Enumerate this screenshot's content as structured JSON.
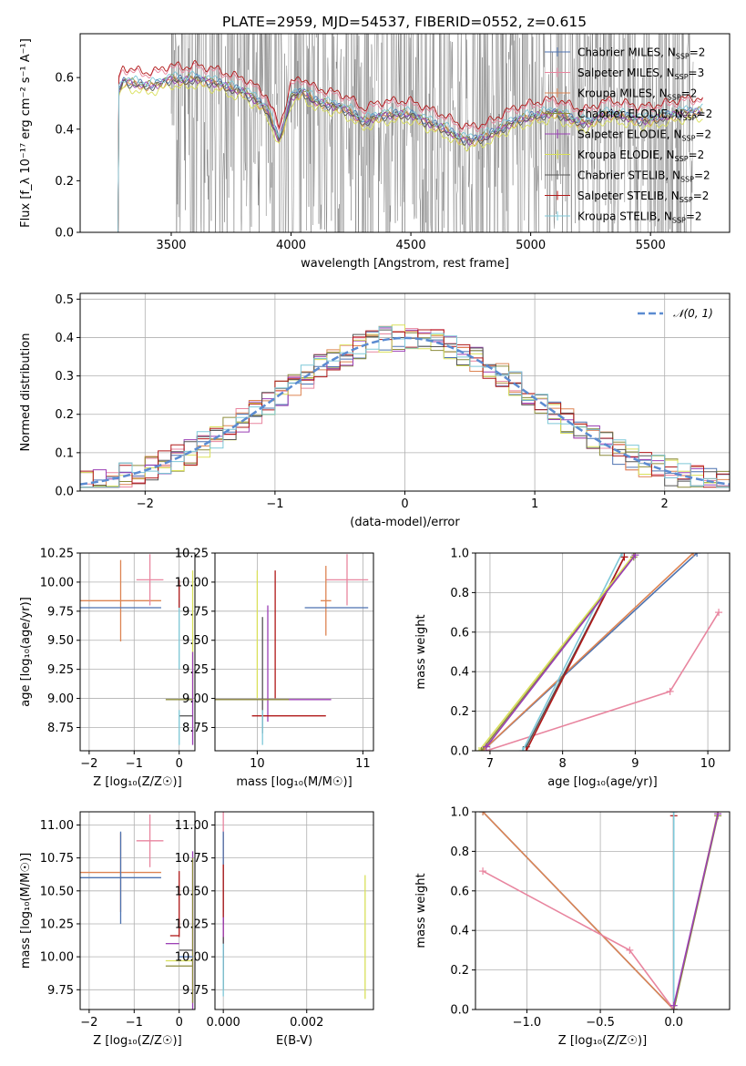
{
  "figure": {
    "title": "PLATE=2959, MJD=54537, FIBERID=0552, z=0.615"
  },
  "chart_data": [
    {
      "id": "spectrum",
      "type": "line",
      "xlabel": "wavelength [Angstrom, rest frame]",
      "ylabel": "Flux [f_λ 10⁻¹⁷ erg cm⁻² s⁻¹ A⁻¹]",
      "xlim": [
        3120,
        5830
      ],
      "ylim": [
        0,
        0.77
      ],
      "xticks": [
        3500,
        4000,
        4500,
        5000,
        5500
      ],
      "yticks": [
        0.0,
        0.2,
        0.4,
        0.6
      ],
      "legend_position": "top-right",
      "series": [
        {
          "name": "Chabrier MILES, N_SSP=2",
          "color": "#4c72b0",
          "marker": "|"
        },
        {
          "name": "Salpeter MILES, N_SSP=3",
          "color": "#e8859f",
          "marker": "|"
        },
        {
          "name": "Kroupa MILES, N_SSP=2",
          "color": "#dd8452",
          "marker": "|"
        },
        {
          "name": "Chabrier ELODIE, N_SSP=2",
          "color": "#8c8c3c",
          "marker": "|"
        },
        {
          "name": "Salpeter ELODIE, N_SSP=2",
          "color": "#9b3fb5",
          "marker": "|"
        },
        {
          "name": "Kroupa ELODIE, N_SSP=2",
          "color": "#d9e05a",
          "marker": "|"
        },
        {
          "name": "Chabrier STELIB, N_SSP=2",
          "color": "#555555",
          "marker": "|"
        },
        {
          "name": "Salpeter STELIB, N_SSP=2",
          "color": "#b01818",
          "marker": "|"
        },
        {
          "name": "Kroupa STELIB, N_SSP=2",
          "color": "#7ec8d8",
          "marker": "|"
        }
      ],
      "model_profile": {
        "x": [
          3280,
          3300,
          3350,
          3400,
          3450,
          3500,
          3550,
          3600,
          3650,
          3700,
          3750,
          3800,
          3850,
          3900,
          3950,
          3970,
          4000,
          4050,
          4100,
          4150,
          4200,
          4250,
          4300,
          4350,
          4400,
          4450,
          4500,
          4550,
          4600,
          4650,
          4700,
          4750,
          4800,
          4850,
          4900,
          4950,
          5000,
          5050,
          5100,
          5150,
          5200,
          5250,
          5300,
          5350,
          5400,
          5450,
          5500,
          5550,
          5600,
          5650,
          5700
        ],
        "y": [
          0.55,
          0.59,
          0.58,
          0.57,
          0.58,
          0.6,
          0.59,
          0.6,
          0.59,
          0.58,
          0.56,
          0.55,
          0.52,
          0.48,
          0.36,
          0.42,
          0.53,
          0.55,
          0.51,
          0.5,
          0.49,
          0.47,
          0.43,
          0.45,
          0.46,
          0.46,
          0.46,
          0.44,
          0.42,
          0.4,
          0.37,
          0.36,
          0.37,
          0.39,
          0.42,
          0.44,
          0.45,
          0.46,
          0.47,
          0.45,
          0.43,
          0.43,
          0.46,
          0.46,
          0.45,
          0.44,
          0.44,
          0.45,
          0.46,
          0.47,
          0.47
        ],
        "plateau_before": 3280
      },
      "data_noise": {
        "x_start": 3500,
        "x_end": 5680,
        "color": "#808080"
      }
    },
    {
      "id": "residuals",
      "type": "histogram",
      "xlabel": "(data-model)/error",
      "ylabel": "Normed distribution",
      "xlim": [
        -2.5,
        2.5
      ],
      "ylim": [
        0,
        0.515
      ],
      "xticks": [
        -2,
        -1,
        0,
        1,
        2
      ],
      "yticks": [
        0.0,
        0.1,
        0.2,
        0.3,
        0.4,
        0.5
      ],
      "grid": true,
      "legend": {
        "label": "𝒩(0, 1)",
        "position": "top-right",
        "color": "#5b8bd1"
      },
      "bin_width": 0.1,
      "histogram_colors": [
        "#4c72b0",
        "#e8859f",
        "#dd8452",
        "#8c8c3c",
        "#9b3fb5",
        "#d9e05a",
        "#555555",
        "#b01818",
        "#7ec8d8"
      ]
    },
    {
      "id": "age_vs_Z",
      "type": "scatter",
      "xlabel": "Z [log₁₀(Z/Z☉)]",
      "ylabel": "age  [log₁₀(age/yr)]",
      "xlim": [
        -2.2,
        0.35
      ],
      "ylim": [
        8.55,
        10.25
      ],
      "xticks": [
        -2,
        -1,
        0
      ],
      "yticks": [
        8.75,
        9.0,
        9.25,
        9.5,
        9.75,
        10.0,
        10.25
      ],
      "grid": true,
      "points": [
        {
          "x": -1.3,
          "y": 9.84,
          "xerr": 0.9,
          "yerr": 0.35,
          "color": "#dd8452"
        },
        {
          "x": -1.3,
          "y": 9.78,
          "xerr": 0.9,
          "yerr": 0.0,
          "color": "#4c72b0"
        },
        {
          "x": -0.65,
          "y": 10.02,
          "xerr": 0.3,
          "yerr": 0.22,
          "color": "#e8859f"
        },
        {
          "x": 0.0,
          "y": 9.55,
          "xerr": 0.0,
          "yerr": 0.3,
          "color": "#7ec8d8"
        },
        {
          "x": 0.0,
          "y": 9.9,
          "xerr": 0.0,
          "yerr": 0.12,
          "color": "#b01818"
        },
        {
          "x": 0.3,
          "y": 9.55,
          "xerr": 0.0,
          "yerr": 0.55,
          "color": "#d9e05a"
        },
        {
          "x": 0.3,
          "y": 9.0,
          "xerr": 0.0,
          "yerr": 0.4,
          "color": "#9b3fb5"
        },
        {
          "x": 0.0,
          "y": 8.99,
          "xerr": 0.3,
          "yerr": 0.0,
          "color": "#8c8c3c"
        },
        {
          "x": 0.15,
          "y": 8.85,
          "xerr": 0.15,
          "yerr": 0.0,
          "color": "#555555"
        },
        {
          "x": 0.0,
          "y": 8.75,
          "xerr": 0.0,
          "yerr": 0.15,
          "color": "#7ec8d8"
        }
      ]
    },
    {
      "id": "age_vs_mass",
      "type": "scatter",
      "xlabel": "mass [log₁₀(M/M☉)]",
      "ylabel": "",
      "xlim": [
        9.6,
        11.1
      ],
      "ylim": [
        8.55,
        10.25
      ],
      "xticks": [
        10,
        11
      ],
      "yticks": [
        8.75,
        9.0,
        9.25,
        9.5,
        9.75,
        10.0,
        10.25
      ],
      "grid": true,
      "points": [
        {
          "x": 10.85,
          "y": 10.02,
          "xerr": 0.2,
          "yerr": 0.22,
          "color": "#e8859f"
        },
        {
          "x": 10.65,
          "y": 9.84,
          "xerr": 0.05,
          "yerr": 0.3,
          "color": "#dd8452"
        },
        {
          "x": 10.75,
          "y": 9.78,
          "xerr": 0.3,
          "yerr": 0.0,
          "color": "#4c72b0"
        },
        {
          "x": 10.17,
          "y": 9.55,
          "xerr": 0.0,
          "yerr": 0.55,
          "color": "#b01818"
        },
        {
          "x": 10.0,
          "y": 9.55,
          "xerr": 0.0,
          "yerr": 0.55,
          "color": "#d9e05a"
        },
        {
          "x": 10.1,
          "y": 9.3,
          "xerr": 0.0,
          "yerr": 0.5,
          "color": "#9b3fb5"
        },
        {
          "x": 10.05,
          "y": 9.2,
          "xerr": 0.0,
          "yerr": 0.5,
          "color": "#555555"
        },
        {
          "x": 10.15,
          "y": 8.99,
          "xerr": 0.55,
          "yerr": 0.0,
          "color": "#9b3fb5"
        },
        {
          "x": 9.95,
          "y": 8.99,
          "xerr": 0.35,
          "yerr": 0.0,
          "color": "#8c8c3c"
        },
        {
          "x": 10.3,
          "y": 8.85,
          "xerr": 0.35,
          "yerr": 0.0,
          "color": "#b01818"
        },
        {
          "x": 10.05,
          "y": 8.75,
          "xerr": 0.0,
          "yerr": 0.15,
          "color": "#7ec8d8"
        }
      ]
    },
    {
      "id": "mass_weight_vs_age",
      "type": "line",
      "xlabel": "age  [log₁₀(age/yr)]",
      "ylabel": "mass weight",
      "xlim": [
        6.8,
        10.3
      ],
      "ylim": [
        0,
        1
      ],
      "xticks": [
        7,
        8,
        9,
        10
      ],
      "yticks": [
        0.0,
        0.2,
        0.4,
        0.6,
        0.8,
        1.0
      ],
      "grid": true,
      "series": [
        {
          "color": "#4c72b0",
          "x": [
            6.9,
            9.85
          ],
          "y": [
            0.0,
            1.0
          ]
        },
        {
          "color": "#dd8452",
          "x": [
            6.9,
            9.8
          ],
          "y": [
            0.0,
            1.0
          ]
        },
        {
          "color": "#e8859f",
          "x": [
            6.95,
            9.48,
            10.15
          ],
          "y": [
            0.0,
            0.3,
            0.7
          ]
        },
        {
          "color": "#555555",
          "x": [
            7.5,
            8.85
          ],
          "y": [
            0.02,
            0.98
          ]
        },
        {
          "color": "#b01818",
          "x": [
            7.5,
            8.85
          ],
          "y": [
            0.0,
            0.98
          ]
        },
        {
          "color": "#7ec8d8",
          "x": [
            7.45,
            8.82
          ],
          "y": [
            0.0,
            1.0
          ]
        },
        {
          "color": "#d9e05a",
          "x": [
            6.85,
            9.0
          ],
          "y": [
            0.0,
            1.0
          ]
        },
        {
          "color": "#8c8c3c",
          "x": [
            6.88,
            8.98
          ],
          "y": [
            0.0,
            0.98
          ]
        },
        {
          "color": "#9b3fb5",
          "x": [
            6.95,
            9.0
          ],
          "y": [
            0.02,
            0.99
          ]
        }
      ]
    },
    {
      "id": "mass_vs_Z",
      "type": "scatter",
      "xlabel": "Z [log₁₀(Z/Z☉)]",
      "ylabel": "mass [log₁₀(M/M☉)]",
      "xlim": [
        -2.2,
        0.35
      ],
      "ylim": [
        9.6,
        11.1
      ],
      "xticks": [
        -2,
        -1,
        0
      ],
      "yticks": [
        9.75,
        10.0,
        10.25,
        10.5,
        10.75,
        11.0
      ],
      "grid": true,
      "points": [
        {
          "x": -0.65,
          "y": 10.88,
          "xerr": 0.3,
          "yerr": 0.2,
          "color": "#e8859f"
        },
        {
          "x": -1.3,
          "y": 10.64,
          "xerr": 0.9,
          "yerr": 0.3,
          "color": "#dd8452"
        },
        {
          "x": -1.3,
          "y": 10.6,
          "xerr": 0.9,
          "yerr": 0.35,
          "color": "#4c72b0"
        },
        {
          "x": 0.0,
          "y": 10.4,
          "xerr": 0.0,
          "yerr": 0.25,
          "color": "#b01818"
        },
        {
          "x": -0.1,
          "y": 10.16,
          "xerr": 0.1,
          "yerr": 0.0,
          "color": "#b01818"
        },
        {
          "x": -0.15,
          "y": 10.1,
          "xerr": 0.15,
          "yerr": 0.0,
          "color": "#9b3fb5"
        },
        {
          "x": 0.3,
          "y": 10.2,
          "xerr": 0.0,
          "yerr": 0.6,
          "color": "#9b3fb5"
        },
        {
          "x": 0.3,
          "y": 10.2,
          "xerr": 0.0,
          "yerr": 0.55,
          "color": "#8c8c3c"
        },
        {
          "x": 0.15,
          "y": 10.05,
          "xerr": 0.15,
          "yerr": 0.0,
          "color": "#555555"
        },
        {
          "x": 0.15,
          "y": 10.0,
          "xerr": 0.15,
          "yerr": 0.0,
          "color": "#4c72b0"
        },
        {
          "x": 0.0,
          "y": 9.97,
          "xerr": 0.3,
          "yerr": 0.0,
          "color": "#d9e05a"
        },
        {
          "x": 0.0,
          "y": 9.93,
          "xerr": 0.3,
          "yerr": 0.0,
          "color": "#8c8c3c"
        }
      ]
    },
    {
      "id": "mass_vs_ebv",
      "type": "scatter",
      "xlabel": "E(B-V)",
      "ylabel": "",
      "xlim": [
        -0.0002,
        0.0036
      ],
      "ylim": [
        9.6,
        11.1
      ],
      "xticks": [
        0.0,
        0.002
      ],
      "xtick_labels": [
        "0.000",
        "0.002"
      ],
      "yticks": [
        9.75,
        10.0,
        10.25,
        10.5,
        10.75,
        11.0
      ],
      "grid": true,
      "points": [
        {
          "x": 0.0,
          "y": 10.88,
          "yerr": 0.22,
          "color": "#e8859f"
        },
        {
          "x": 0.0,
          "y": 10.64,
          "yerr": 0.3,
          "color": "#dd8452"
        },
        {
          "x": 0.0,
          "y": 10.6,
          "yerr": 0.35,
          "color": "#4c72b0"
        },
        {
          "x": 0.0,
          "y": 10.4,
          "yerr": 0.3,
          "color": "#b01818"
        },
        {
          "x": 0.0,
          "y": 10.1,
          "yerr": 0.2,
          "color": "#9b3fb5"
        },
        {
          "x": 0.0,
          "y": 9.95,
          "yerr": 0.2,
          "color": "#555555"
        },
        {
          "x": 0.0,
          "y": 9.9,
          "yerr": 0.2,
          "color": "#7ec8d8"
        },
        {
          "x": 0.0034,
          "y": 10.15,
          "yerr": 0.47,
          "color": "#d9e05a"
        }
      ]
    },
    {
      "id": "mass_weight_vs_Z",
      "type": "line",
      "xlabel": "Z [log₁₀(Z/Z☉)]",
      "ylabel": "mass weight",
      "xlim": [
        -1.35,
        0.38
      ],
      "ylim": [
        0,
        1
      ],
      "xticks": [
        -1.0,
        -0.5,
        0.0
      ],
      "xtick_labels": [
        "−1.0",
        "−0.5",
        "0.0"
      ],
      "yticks": [
        0.0,
        0.2,
        0.4,
        0.6,
        0.8,
        1.0
      ],
      "grid": true,
      "series": [
        {
          "color": "#4c72b0",
          "x": [
            -1.3,
            0.0
          ],
          "y": [
            1.0,
            0.0
          ]
        },
        {
          "color": "#dd8452",
          "x": [
            -1.3,
            0.0
          ],
          "y": [
            1.0,
            0.0
          ]
        },
        {
          "color": "#e8859f",
          "x": [
            -1.3,
            -0.3,
            0.0
          ],
          "y": [
            0.7,
            0.3,
            0.0
          ]
        },
        {
          "color": "#b01818",
          "x": [
            0.0,
            0.0
          ],
          "y": [
            0.0,
            0.98
          ]
        },
        {
          "color": "#555555",
          "x": [
            0.0,
            0.0
          ],
          "y": [
            0.0,
            1.0
          ]
        },
        {
          "color": "#7ec8d8",
          "x": [
            0.0,
            0.0
          ],
          "y": [
            0.0,
            1.0
          ]
        },
        {
          "color": "#d9e05a",
          "x": [
            0.0,
            0.3
          ],
          "y": [
            0.0,
            1.0
          ]
        },
        {
          "color": "#8c8c3c",
          "x": [
            0.0,
            0.3
          ],
          "y": [
            0.0,
            0.98
          ]
        },
        {
          "color": "#9b3fb5",
          "x": [
            0.0,
            0.3
          ],
          "y": [
            0.02,
            0.99
          ]
        }
      ]
    }
  ]
}
